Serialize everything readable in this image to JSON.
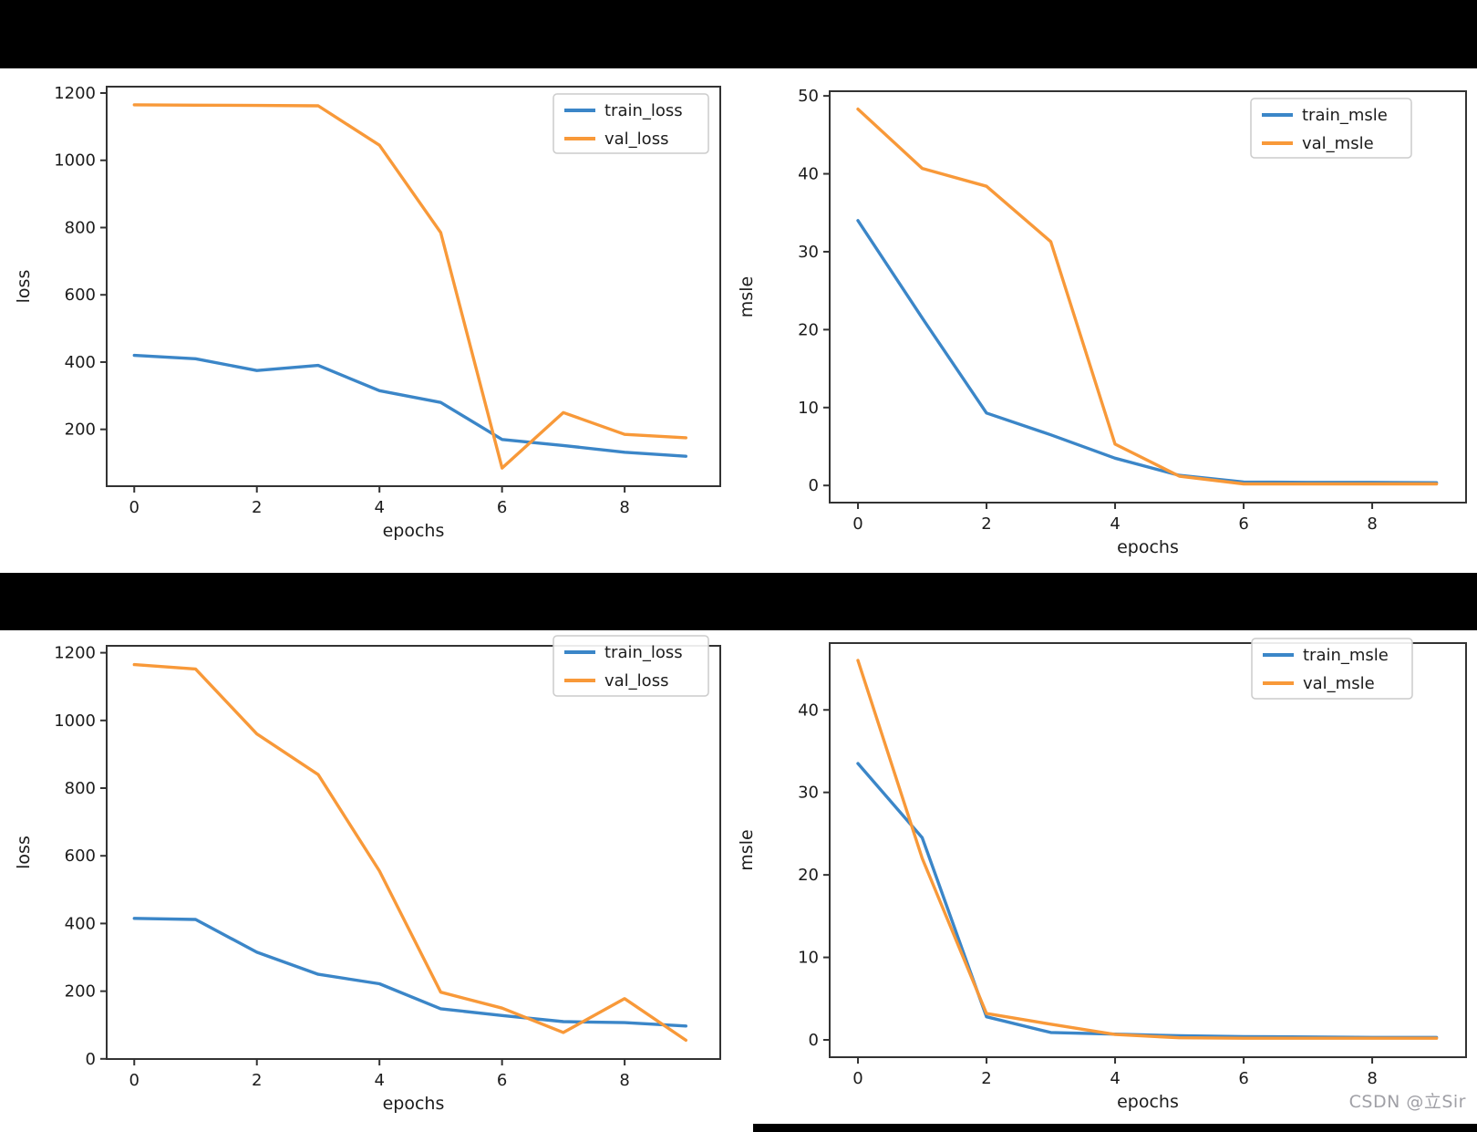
{
  "page": {
    "watermark": "CSDN @立Sir"
  },
  "colors": {
    "background": "#ffffff",
    "black_bars": "#000000",
    "axis_frame": "#333333",
    "tick_label": "#1c1c1c",
    "legend_border": "#cccccc",
    "watermark": "#a0a0a6",
    "train_line": "#3b86c8",
    "val_line": "#f89939"
  },
  "chart_data": [
    {
      "id": "loss-top",
      "type": "line",
      "title": "",
      "xlabel": "epochs",
      "ylabel": "loss",
      "x": [
        0,
        1,
        2,
        3,
        4,
        5,
        6,
        7,
        8,
        9
      ],
      "xticks": [
        0,
        2,
        4,
        6,
        8
      ],
      "yticks": [
        200,
        400,
        600,
        800,
        1000,
        1200
      ],
      "xlim": [
        -0.45,
        9.56
      ],
      "ylim": [
        31,
        1219
      ],
      "grid": false,
      "legend_position": "upper right",
      "series": [
        {
          "name": "train_loss",
          "color": "#3b86c8",
          "values": [
            420,
            410,
            375,
            390,
            315,
            280,
            170,
            152,
            132,
            120
          ]
        },
        {
          "name": "val_loss",
          "color": "#f89939",
          "values": [
            1165,
            1164,
            1163,
            1162,
            1045,
            785,
            85,
            250,
            185,
            175
          ]
        }
      ]
    },
    {
      "id": "msle-top",
      "type": "line",
      "title": "",
      "xlabel": "epochs",
      "ylabel": "msle",
      "x": [
        0,
        1,
        2,
        3,
        4,
        5,
        6,
        7,
        8,
        9
      ],
      "xticks": [
        0,
        2,
        4,
        6,
        8
      ],
      "yticks": [
        0,
        10,
        20,
        30,
        40,
        50
      ],
      "xlim": [
        -0.44,
        9.46
      ],
      "ylim": [
        -2.2,
        50.6
      ],
      "grid": false,
      "legend_position": "upper right",
      "series": [
        {
          "name": "train_msle",
          "color": "#3b86c8",
          "values": [
            34,
            21.5,
            9.3,
            6.5,
            3.5,
            1.3,
            0.45,
            0.4,
            0.4,
            0.35
          ]
        },
        {
          "name": "val_msle",
          "color": "#f89939",
          "values": [
            48.3,
            40.7,
            38.4,
            31.3,
            5.3,
            1.2,
            0.2,
            0.2,
            0.2,
            0.2
          ]
        }
      ]
    },
    {
      "id": "loss-bottom",
      "type": "line",
      "title": "",
      "xlabel": "epochs",
      "ylabel": "loss",
      "x": [
        0,
        1,
        2,
        3,
        4,
        5,
        6,
        7,
        8,
        9
      ],
      "xticks": [
        0,
        2,
        4,
        6,
        8
      ],
      "yticks": [
        0,
        200,
        400,
        600,
        800,
        1000,
        1200
      ],
      "xlim": [
        -0.45,
        9.56
      ],
      "ylim": [
        -0.5,
        1220.5
      ],
      "grid": false,
      "legend_position": "upper right",
      "series": [
        {
          "name": "train_loss",
          "color": "#3b86c8",
          "values": [
            415,
            412,
            315,
            250,
            222,
            148,
            128,
            110,
            107,
            97
          ]
        },
        {
          "name": "val_loss",
          "color": "#f89939",
          "values": [
            1165,
            1152,
            960,
            840,
            555,
            197,
            150,
            78,
            178,
            55
          ]
        }
      ]
    },
    {
      "id": "msle-bottom",
      "type": "line",
      "title": "",
      "xlabel": "epochs",
      "ylabel": "msle",
      "x": [
        0,
        1,
        2,
        3,
        4,
        5,
        6,
        7,
        8,
        9
      ],
      "xticks": [
        0,
        2,
        4,
        6,
        8
      ],
      "yticks": [
        0,
        10,
        20,
        30,
        40
      ],
      "xlim": [
        -0.44,
        9.46
      ],
      "ylim": [
        -2.1,
        48.1
      ],
      "grid": false,
      "legend_position": "upper right",
      "series": [
        {
          "name": "train_msle",
          "color": "#3b86c8",
          "values": [
            33.5,
            24.5,
            2.8,
            0.9,
            0.7,
            0.5,
            0.4,
            0.35,
            0.3,
            0.3
          ]
        },
        {
          "name": "val_msle",
          "color": "#f89939",
          "values": [
            46,
            22,
            3.2,
            1.9,
            0.65,
            0.25,
            0.2,
            0.2,
            0.2,
            0.2
          ]
        }
      ]
    }
  ]
}
